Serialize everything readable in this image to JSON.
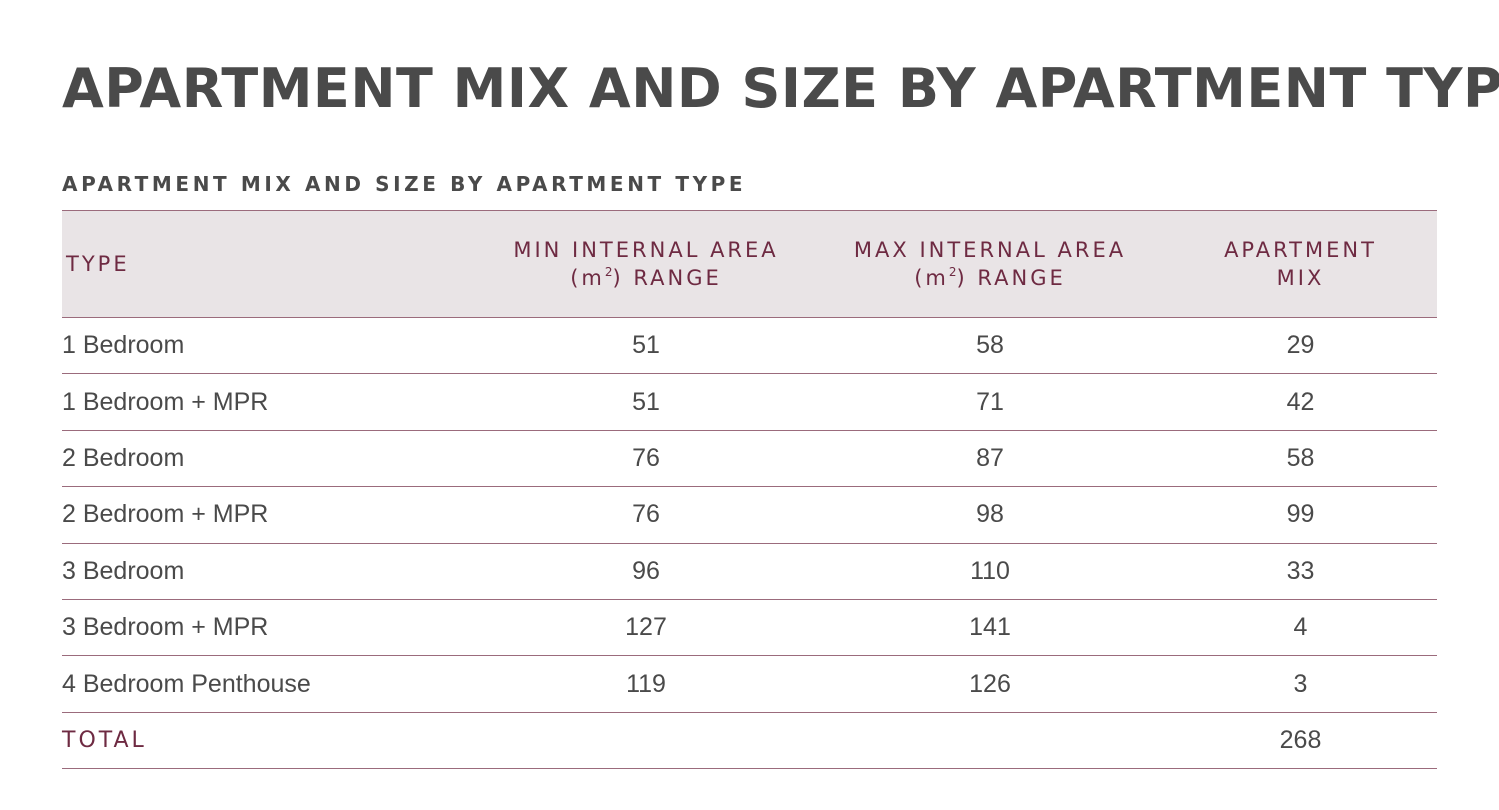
{
  "page": {
    "title": "APARTMENT MIX AND SIZE BY APARTMENT TYPE"
  },
  "table": {
    "caption": "APARTMENT MIX AND SIZE BY APARTMENT TYPE",
    "headers": {
      "type": "TYPE",
      "min_area_line1": "MIN INTERNAL AREA",
      "min_area_line2_prefix": "(m",
      "min_area_line2_sup": "2",
      "min_area_line2_suffix": ") RANGE",
      "max_area_line1": "MAX INTERNAL AREA",
      "max_area_line2_prefix": "(m",
      "max_area_line2_sup": "2",
      "max_area_line2_suffix": ") RANGE",
      "mix_line1": "APARTMENT",
      "mix_line2": "MIX"
    },
    "rows": [
      {
        "type": "1 Bedroom",
        "min_area": "51",
        "max_area": "58",
        "mix": "29"
      },
      {
        "type": "1 Bedroom + MPR",
        "min_area": "51",
        "max_area": "71",
        "mix": "42"
      },
      {
        "type": "2 Bedroom",
        "min_area": "76",
        "max_area": "87",
        "mix": "58"
      },
      {
        "type": "2 Bedroom + MPR",
        "min_area": "76",
        "max_area": "98",
        "mix": "99"
      },
      {
        "type": "3 Bedroom",
        "min_area": "96",
        "max_area": "110",
        "mix": "33"
      },
      {
        "type": "3 Bedroom + MPR",
        "min_area": "127",
        "max_area": "141",
        "mix": "4"
      },
      {
        "type": "4 Bedroom Penthouse",
        "min_area": "119",
        "max_area": "126",
        "mix": "3"
      }
    ],
    "total": {
      "label": "TOTAL",
      "min_area": "",
      "max_area": "",
      "mix": "268"
    }
  },
  "colors": {
    "title_text": "#4a4a4a",
    "header_background": "#e9e4e6",
    "header_text": "#6e2a42",
    "rule_lines": "#9b6b7c"
  }
}
